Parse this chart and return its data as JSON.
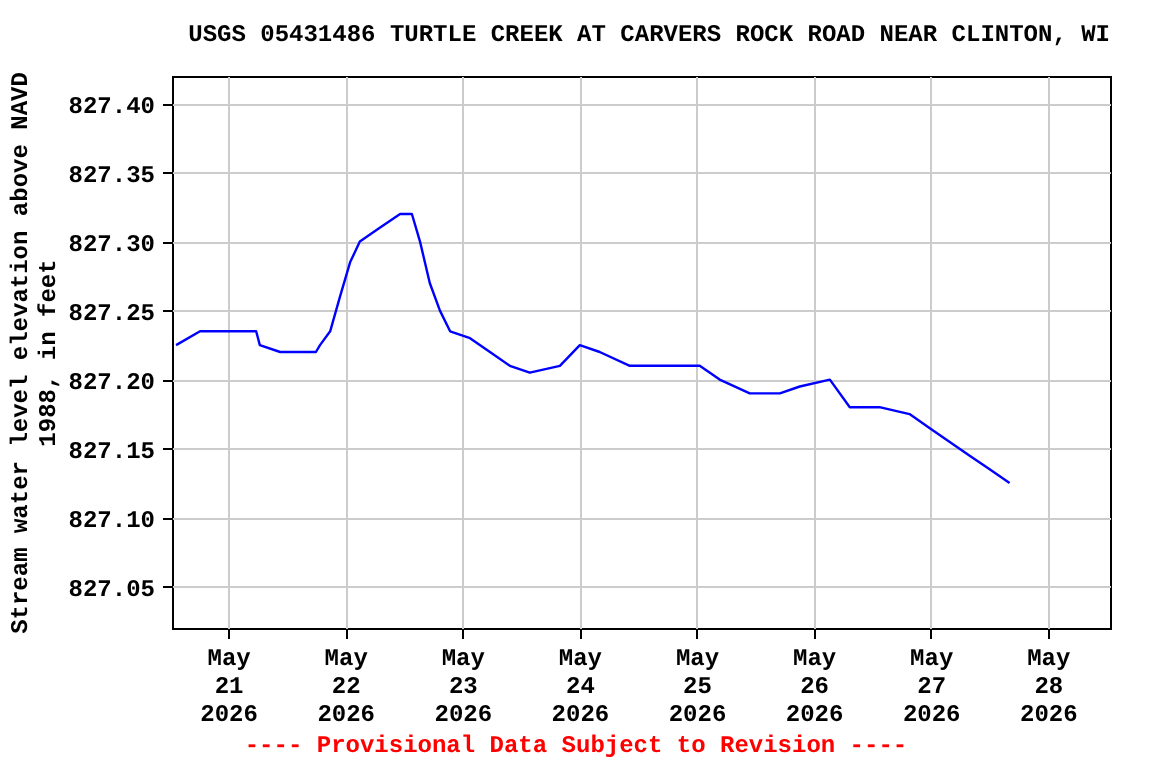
{
  "chart_data": {
    "type": "line",
    "title": "USGS 05431486 TURTLE CREEK AT CARVERS ROCK ROAD NEAR CLINTON, WI",
    "ylabel": "Stream water level elevation above NAVD 1988, in feet",
    "annotations": [
      "---- Provisional Data Subject to Revision ----"
    ],
    "x": [
      "2026-05-20T13:20",
      "2026-05-20T18:15",
      "2026-05-21T00:25",
      "2026-05-21T05:45",
      "2026-05-21T06:30",
      "2026-05-21T10:40",
      "2026-05-21T18:00",
      "2026-05-21T18:50",
      "2026-05-21T20:55",
      "2026-05-21T22:55",
      "2026-05-22T01:00",
      "2026-05-22T03:00",
      "2026-05-22T07:05",
      "2026-05-22T11:15",
      "2026-05-22T13:40",
      "2026-05-22T15:20",
      "2026-05-22T17:20",
      "2026-05-22T19:25",
      "2026-05-22T21:30",
      "2026-05-23T01:35",
      "2026-05-23T05:40",
      "2026-05-23T09:45",
      "2026-05-23T13:50",
      "2026-05-23T20:00",
      "2026-05-24T00:05",
      "2026-05-24T04:10",
      "2026-05-24T10:20",
      "2026-05-24T16:30",
      "2026-05-25T00:40",
      "2026-05-25T04:45",
      "2026-05-25T10:55",
      "2026-05-25T17:05",
      "2026-05-25T21:10",
      "2026-05-26T03:20",
      "2026-05-26T07:25",
      "2026-05-26T13:30",
      "2026-05-26T19:40",
      "2026-05-26T23:45",
      "2026-05-27T03:50",
      "2026-05-27T07:55",
      "2026-05-27T12:05",
      "2026-05-27T16:10"
    ],
    "series": [
      {
        "color": "#0000ff",
        "values": [
          827.225,
          827.235,
          827.235,
          827.235,
          827.225,
          827.22,
          827.22,
          827.225,
          827.235,
          827.26,
          827.285,
          827.3,
          827.31,
          827.32,
          827.32,
          827.3,
          827.27,
          827.25,
          827.235,
          827.23,
          827.22,
          827.21,
          827.205,
          827.21,
          827.225,
          827.22,
          827.21,
          827.21,
          827.21,
          827.2,
          827.19,
          827.19,
          827.195,
          827.2,
          827.18,
          827.18,
          827.175,
          827.165,
          827.155,
          827.145,
          827.135,
          827.125
        ]
      }
    ],
    "xlim": [
      "2026-05-20T12:30",
      "2026-05-28T12:45"
    ],
    "xticks": [
      {
        "value": "2026-05-21",
        "label": "May 21 2026"
      },
      {
        "value": "2026-05-22",
        "label": "May 22 2026"
      },
      {
        "value": "2026-05-23",
        "label": "May 23 2026"
      },
      {
        "value": "2026-05-24",
        "label": "May 24 2026"
      },
      {
        "value": "2026-05-25",
        "label": "May 25 2026"
      },
      {
        "value": "2026-05-26",
        "label": "May 26 2026"
      },
      {
        "value": "2026-05-27",
        "label": "May 27 2026"
      },
      {
        "value": "2026-05-28",
        "label": "May 28 2026"
      }
    ],
    "ylim": [
      827.02,
      827.42
    ],
    "yticks": [
      {
        "value": 827.05,
        "label": "827.05"
      },
      {
        "value": 827.1,
        "label": "827.10"
      },
      {
        "value": 827.15,
        "label": "827.15"
      },
      {
        "value": 827.2,
        "label": "827.20"
      },
      {
        "value": 827.25,
        "label": "827.25"
      },
      {
        "value": 827.3,
        "label": "827.30"
      },
      {
        "value": 827.35,
        "label": "827.35"
      },
      {
        "value": 827.4,
        "label": "827.40"
      }
    ],
    "grid": true,
    "marker": "none",
    "line_style": "solid"
  }
}
